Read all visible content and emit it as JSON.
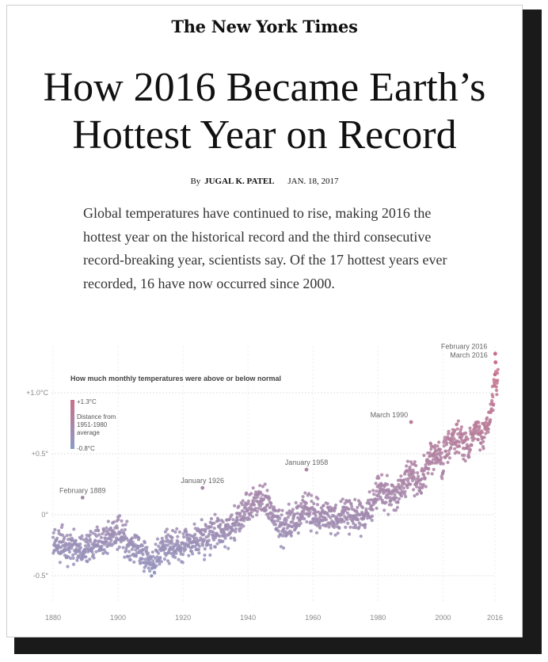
{
  "masthead": "The New York Times",
  "headline": {
    "line1": "How 2016 Became Earth’s",
    "line2": "Hottest Year on Record"
  },
  "byline": {
    "by": "By",
    "author": "JUGAL K. PATEL",
    "date": "JAN. 18, 2017"
  },
  "summary": "Global temperatures have continued to rise, making 2016 the hottest year on the historical record and the third consecutive record-breaking year, scientists say. Of the 17 hottest years ever recorded, 16 have now occurred since 2000.",
  "colors": {
    "cold": "#8a9bc8",
    "warm": "#c97088",
    "annotation": "#666666",
    "grid": "#dddddd"
  },
  "chart_data": {
    "type": "scatter",
    "title": "How much monthly temperatures were above or below normal",
    "xlabel": "",
    "ylabel": "",
    "xlim": [
      1880,
      2017
    ],
    "ylim": [
      -0.8,
      1.3
    ],
    "x_ticks": [
      1880,
      1900,
      1920,
      1940,
      1960,
      1980,
      2000,
      2016
    ],
    "y_ticks": [
      {
        "value": 1.0,
        "label": "+1.0°C"
      },
      {
        "value": 0.5,
        "label": "+0.5°"
      },
      {
        "value": 0,
        "label": "0°"
      },
      {
        "value": -0.5,
        "label": "-0.5°"
      }
    ],
    "legend": {
      "max_label": "+1.3°C",
      "min_label": "-0.8°C",
      "description": [
        "Distance from",
        "1951-1980",
        "average"
      ],
      "position": "top-left"
    },
    "grid": true,
    "annotations": [
      {
        "label": "February 1889",
        "x": 1889.1,
        "y": 0.14
      },
      {
        "label": "January 1926",
        "x": 1926.0,
        "y": 0.22
      },
      {
        "label": "January 1958",
        "x": 1958.0,
        "y": 0.37
      },
      {
        "label": "March 1990",
        "x": 1990.2,
        "y": 0.76
      },
      {
        "label": "February 2016",
        "x": 2016.1,
        "y": 1.32
      },
      {
        "label": "March 2016",
        "x": 2016.2,
        "y": 1.25
      }
    ],
    "trend": [
      [
        1880,
        -0.2
      ],
      [
        1885,
        -0.25
      ],
      [
        1890,
        -0.28
      ],
      [
        1895,
        -0.22
      ],
      [
        1900,
        -0.15
      ],
      [
        1905,
        -0.28
      ],
      [
        1910,
        -0.4
      ],
      [
        1915,
        -0.25
      ],
      [
        1920,
        -0.25
      ],
      [
        1925,
        -0.2
      ],
      [
        1930,
        -0.15
      ],
      [
        1935,
        -0.1
      ],
      [
        1940,
        0.05
      ],
      [
        1944,
        0.15
      ],
      [
        1948,
        0.0
      ],
      [
        1950,
        -0.1
      ],
      [
        1955,
        -0.05
      ],
      [
        1958,
        0.05
      ],
      [
        1960,
        0.02
      ],
      [
        1965,
        -0.03
      ],
      [
        1970,
        0.02
      ],
      [
        1975,
        -0.02
      ],
      [
        1978,
        0.06
      ],
      [
        1980,
        0.2
      ],
      [
        1985,
        0.15
      ],
      [
        1990,
        0.35
      ],
      [
        1993,
        0.25
      ],
      [
        1995,
        0.4
      ],
      [
        1998,
        0.5
      ],
      [
        2000,
        0.45
      ],
      [
        2002,
        0.6
      ],
      [
        2005,
        0.65
      ],
      [
        2008,
        0.55
      ],
      [
        2010,
        0.7
      ],
      [
        2012,
        0.65
      ],
      [
        2014,
        0.75
      ],
      [
        2015,
        0.9
      ],
      [
        2016,
        1.1
      ]
    ]
  }
}
